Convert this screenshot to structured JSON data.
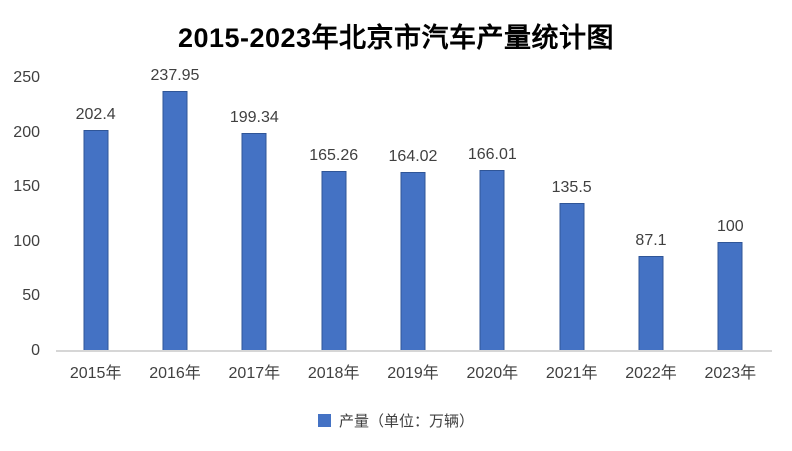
{
  "chart_data": {
    "type": "bar",
    "title": "2015-2023年北京市汽车产量统计图",
    "categories": [
      "2015年",
      "2016年",
      "2017年",
      "2018年",
      "2019年",
      "2020年",
      "2021年",
      "2022年",
      "2023年"
    ],
    "values": [
      202.4,
      237.95,
      199.34,
      165.26,
      164.02,
      166.01,
      135.5,
      87.1,
      100
    ],
    "data_labels": [
      "202.4",
      "237.95",
      "199.34",
      "165.26",
      "164.02",
      "166.01",
      "135.5",
      "87.1",
      "100"
    ],
    "xlabel": "",
    "ylabel": "",
    "ylim": [
      0,
      250
    ],
    "y_ticks": [
      0,
      50,
      100,
      150,
      200,
      250
    ],
    "grid": false,
    "legend": {
      "position": "bottom",
      "label": "产量（单位：万辆）"
    },
    "colors": {
      "bar_fill": "#4472C4",
      "bar_border": "#2F5597",
      "axis_line": "#D6D6D6",
      "label_text": "#404040",
      "title_text": "#000000"
    }
  }
}
